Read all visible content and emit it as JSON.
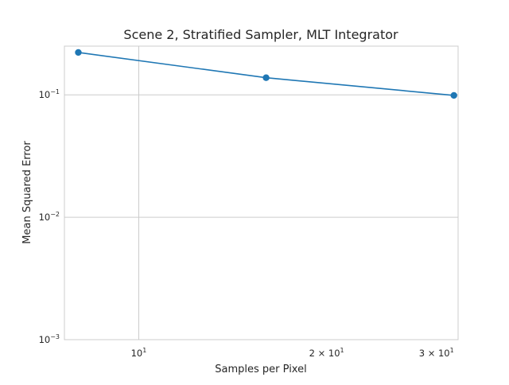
{
  "chart_data": {
    "type": "line",
    "title": "Scene 2, Stratified Sampler, MLT Integrator",
    "xlabel": "Samples per Pixel",
    "ylabel": "Mean Squared Error",
    "x_scale": "log",
    "y_scale": "log",
    "xlim": [
      7.6,
      32.5
    ],
    "ylim": [
      0.001,
      0.25
    ],
    "grid": true,
    "legend": "none",
    "colors": {
      "line": "#1f77b4",
      "grid": "#cccccc",
      "spine": "#cccccc",
      "text": "#262626"
    },
    "x_ticks": [
      {
        "value": 10,
        "base": "10",
        "mult": "",
        "exp": "1"
      },
      {
        "value": 20,
        "base": "10",
        "mult": "2 × ",
        "exp": "1"
      },
      {
        "value": 30,
        "base": "10",
        "mult": "3 × ",
        "exp": "1"
      }
    ],
    "y_ticks": [
      {
        "value": 0.001,
        "base": "10",
        "exp": "−3"
      },
      {
        "value": 0.01,
        "base": "10",
        "exp": "−2"
      },
      {
        "value": 0.1,
        "base": "10",
        "exp": "−1"
      }
    ],
    "series": [
      {
        "x": [
          8,
          16,
          32
        ],
        "y": [
          0.222,
          0.138,
          0.099
        ]
      }
    ]
  }
}
